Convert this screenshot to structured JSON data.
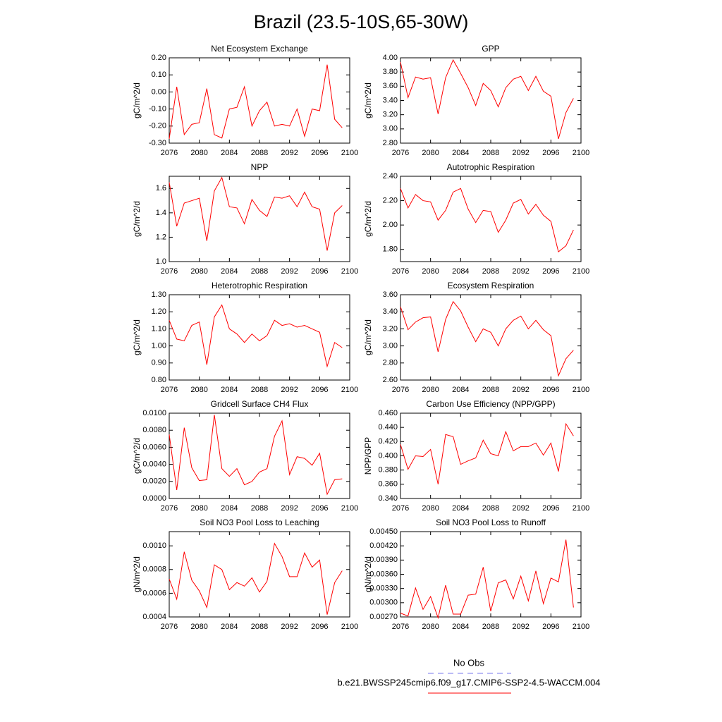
{
  "title": "Brazil (23.5-10S,65-30W)",
  "legend": [
    {
      "label": "No Obs",
      "color": "#7777ee",
      "dash": true
    },
    {
      "label": "b.e21.BWSSP245cmip6.f09_g17.CMIP6-SSP2-4.5-WACCM.004",
      "color": "#ff0000",
      "dash": false
    }
  ],
  "chart_data": [
    {
      "type": "line",
      "title": "Net Ecosystem Exchange",
      "ylabel": "gC/m^2/d",
      "x": [
        2076,
        2077,
        2078,
        2079,
        2080,
        2081,
        2082,
        2083,
        2084,
        2085,
        2086,
        2087,
        2088,
        2089,
        2090,
        2091,
        2092,
        2093,
        2094,
        2095,
        2096,
        2097,
        2098,
        2099
      ],
      "xlim": [
        2076,
        2100
      ],
      "xticks": [
        2076,
        2080,
        2084,
        2088,
        2092,
        2096,
        2100
      ],
      "ylim": [
        -0.3,
        0.2
      ],
      "yticks": [
        {
          "value": 0.2,
          "label": "0.20"
        },
        {
          "value": 0.1,
          "label": "0.10"
        },
        {
          "value": 0,
          "label": "0.00"
        },
        {
          "value": -0.1,
          "label": "-0.10"
        },
        {
          "value": -0.2,
          "label": "-0.20"
        },
        {
          "value": -0.3,
          "label": "-0.30"
        }
      ],
      "series": [
        {
          "color": "#ff0000",
          "values": [
            -0.275,
            0.03,
            -0.25,
            -0.19,
            -0.18,
            0.02,
            -0.25,
            -0.27,
            -0.1,
            -0.09,
            0.03,
            -0.2,
            -0.11,
            -0.06,
            -0.2,
            -0.19,
            -0.2,
            -0.1,
            -0.26,
            -0.1,
            -0.11,
            0.16,
            -0.16,
            -0.21
          ]
        }
      ]
    },
    {
      "type": "line",
      "title": "GPP",
      "ylabel": "gC/m^2/d",
      "x": [
        2076,
        2077,
        2078,
        2079,
        2080,
        2081,
        2082,
        2083,
        2084,
        2085,
        2086,
        2087,
        2088,
        2089,
        2090,
        2091,
        2092,
        2093,
        2094,
        2095,
        2096,
        2097,
        2098,
        2099
      ],
      "xlim": [
        2076,
        2100
      ],
      "xticks": [
        2076,
        2080,
        2084,
        2088,
        2092,
        2096,
        2100
      ],
      "ylim": [
        2.8,
        4.0
      ],
      "yticks": [
        {
          "value": 4.0,
          "label": "4.00"
        },
        {
          "value": 3.8,
          "label": "3.80"
        },
        {
          "value": 3.6,
          "label": "3.60"
        },
        {
          "value": 3.4,
          "label": "3.40"
        },
        {
          "value": 3.2,
          "label": "3.20"
        },
        {
          "value": 3.0,
          "label": "3.00"
        },
        {
          "value": 2.8,
          "label": "2.80"
        }
      ],
      "series": [
        {
          "color": "#ff0000",
          "values": [
            3.94,
            3.44,
            3.73,
            3.7,
            3.72,
            3.21,
            3.72,
            3.97,
            3.78,
            3.58,
            3.33,
            3.64,
            3.54,
            3.31,
            3.58,
            3.7,
            3.74,
            3.54,
            3.74,
            3.53,
            3.46,
            2.86,
            3.23,
            3.43
          ]
        }
      ]
    },
    {
      "type": "line",
      "title": "NPP",
      "ylabel": "gC/m^2/d",
      "x": [
        2076,
        2077,
        2078,
        2079,
        2080,
        2081,
        2082,
        2083,
        2084,
        2085,
        2086,
        2087,
        2088,
        2089,
        2090,
        2091,
        2092,
        2093,
        2094,
        2095,
        2096,
        2097,
        2098,
        2099
      ],
      "xlim": [
        2076,
        2100
      ],
      "xticks": [
        2076,
        2080,
        2084,
        2088,
        2092,
        2096,
        2100
      ],
      "ylim": [
        1.0,
        1.7
      ],
      "yticks": [
        1.6,
        1.4,
        1.2,
        {
          "value": 1.0,
          "label": "1.0"
        }
      ],
      "series": [
        {
          "color": "#ff0000",
          "values": [
            1.65,
            1.29,
            1.48,
            1.5,
            1.52,
            1.17,
            1.58,
            1.69,
            1.45,
            1.44,
            1.31,
            1.51,
            1.42,
            1.37,
            1.53,
            1.52,
            1.54,
            1.45,
            1.57,
            1.45,
            1.43,
            1.09,
            1.4,
            1.46
          ]
        }
      ]
    },
    {
      "type": "line",
      "title": "Autotrophic Respiration",
      "ylabel": "gC/m^2/d",
      "x": [
        2076,
        2077,
        2078,
        2079,
        2080,
        2081,
        2082,
        2083,
        2084,
        2085,
        2086,
        2087,
        2088,
        2089,
        2090,
        2091,
        2092,
        2093,
        2094,
        2095,
        2096,
        2097,
        2098,
        2099
      ],
      "xlim": [
        2076,
        2100
      ],
      "xticks": [
        2076,
        2080,
        2084,
        2088,
        2092,
        2096,
        2100
      ],
      "ylim": [
        1.7,
        2.4
      ],
      "yticks": [
        {
          "value": 2.4,
          "label": "2.40"
        },
        {
          "value": 2.2,
          "label": "2.20"
        },
        {
          "value": 2.0,
          "label": "2.00"
        },
        {
          "value": 1.8,
          "label": "1.80"
        }
      ],
      "series": [
        {
          "color": "#ff0000",
          "values": [
            2.3,
            2.14,
            2.25,
            2.2,
            2.19,
            2.04,
            2.12,
            2.27,
            2.3,
            2.13,
            2.02,
            2.12,
            2.11,
            1.94,
            2.04,
            2.18,
            2.21,
            2.09,
            2.17,
            2.08,
            2.03,
            1.78,
            1.83,
            1.96
          ]
        }
      ]
    },
    {
      "type": "line",
      "title": "Heterotrophic Respiration",
      "ylabel": "gC/m^2/d",
      "x": [
        2076,
        2077,
        2078,
        2079,
        2080,
        2081,
        2082,
        2083,
        2084,
        2085,
        2086,
        2087,
        2088,
        2089,
        2090,
        2091,
        2092,
        2093,
        2094,
        2095,
        2096,
        2097,
        2098,
        2099
      ],
      "xlim": [
        2076,
        2100
      ],
      "xticks": [
        2076,
        2080,
        2084,
        2088,
        2092,
        2096,
        2100
      ],
      "ylim": [
        0.8,
        1.3
      ],
      "yticks": [
        {
          "value": 1.3,
          "label": "1.30"
        },
        {
          "value": 1.2,
          "label": "1.20"
        },
        {
          "value": 1.1,
          "label": "1.10"
        },
        {
          "value": 1.0,
          "label": "1.00"
        },
        {
          "value": 0.9,
          "label": "0.90"
        },
        {
          "value": 0.8,
          "label": "0.80"
        }
      ],
      "series": [
        {
          "color": "#ff0000",
          "values": [
            1.15,
            1.04,
            1.03,
            1.12,
            1.14,
            0.89,
            1.17,
            1.24,
            1.1,
            1.07,
            1.02,
            1.07,
            1.03,
            1.06,
            1.15,
            1.12,
            1.13,
            1.11,
            1.12,
            1.1,
            1.08,
            0.88,
            1.02,
            0.99
          ]
        }
      ]
    },
    {
      "type": "line",
      "title": "Ecosystem Respiration",
      "ylabel": "gC/m^2/d",
      "x": [
        2076,
        2077,
        2078,
        2079,
        2080,
        2081,
        2082,
        2083,
        2084,
        2085,
        2086,
        2087,
        2088,
        2089,
        2090,
        2091,
        2092,
        2093,
        2094,
        2095,
        2096,
        2097,
        2098,
        2099
      ],
      "xlim": [
        2076,
        2100
      ],
      "xticks": [
        2076,
        2080,
        2084,
        2088,
        2092,
        2096,
        2100
      ],
      "ylim": [
        2.6,
        3.6
      ],
      "yticks": [
        {
          "value": 3.6,
          "label": "3.60"
        },
        {
          "value": 3.4,
          "label": "3.40"
        },
        {
          "value": 3.2,
          "label": "3.20"
        },
        {
          "value": 3.0,
          "label": "3.00"
        },
        {
          "value": 2.8,
          "label": "2.80"
        },
        {
          "value": 2.6,
          "label": "2.60"
        }
      ],
      "series": [
        {
          "color": "#ff0000",
          "values": [
            3.46,
            3.19,
            3.28,
            3.33,
            3.34,
            2.93,
            3.31,
            3.52,
            3.41,
            3.22,
            3.05,
            3.2,
            3.16,
            3.0,
            3.2,
            3.3,
            3.35,
            3.2,
            3.3,
            3.19,
            3.12,
            2.65,
            2.85,
            2.95
          ]
        }
      ]
    },
    {
      "type": "line",
      "title": "Gridcell Surface CH4 Flux",
      "ylabel": "gC/m^2/d",
      "x": [
        2076,
        2077,
        2078,
        2079,
        2080,
        2081,
        2082,
        2083,
        2084,
        2085,
        2086,
        2087,
        2088,
        2089,
        2090,
        2091,
        2092,
        2093,
        2094,
        2095,
        2096,
        2097,
        2098,
        2099
      ],
      "xlim": [
        2076,
        2100
      ],
      "xticks": [
        2076,
        2080,
        2084,
        2088,
        2092,
        2096,
        2100
      ],
      "ylim": [
        0,
        0.01
      ],
      "yticks": [
        {
          "value": 0.01,
          "label": "0.0100"
        },
        {
          "value": 0.008,
          "label": "0.0080"
        },
        {
          "value": 0.006,
          "label": "0.0060"
        },
        {
          "value": 0.004,
          "label": "0.0040"
        },
        {
          "value": 0.002,
          "label": "0.0020"
        },
        {
          "value": 0,
          "label": "0.0000"
        }
      ],
      "series": [
        {
          "color": "#ff0000",
          "values": [
            0.0075,
            0.001,
            0.0083,
            0.0036,
            0.0021,
            0.0022,
            0.0098,
            0.0035,
            0.0026,
            0.0035,
            0.0016,
            0.002,
            0.0031,
            0.0035,
            0.0073,
            0.0091,
            0.0028,
            0.0049,
            0.0047,
            0.0039,
            0.0053,
            0.0005,
            0.0022,
            0.0023
          ]
        }
      ]
    },
    {
      "type": "line",
      "title": "Carbon Use Efficiency (NPP/GPP)",
      "ylabel": "NPP/GPP",
      "x": [
        2076,
        2077,
        2078,
        2079,
        2080,
        2081,
        2082,
        2083,
        2084,
        2085,
        2086,
        2087,
        2088,
        2089,
        2090,
        2091,
        2092,
        2093,
        2094,
        2095,
        2096,
        2097,
        2098,
        2099
      ],
      "xlim": [
        2076,
        2100
      ],
      "xticks": [
        2076,
        2080,
        2084,
        2088,
        2092,
        2096,
        2100
      ],
      "ylim": [
        0.34,
        0.46
      ],
      "yticks": [
        {
          "value": 0.46,
          "label": "0.460"
        },
        {
          "value": 0.44,
          "label": "0.440"
        },
        {
          "value": 0.42,
          "label": "0.420"
        },
        {
          "value": 0.4,
          "label": "0.400"
        },
        {
          "value": 0.38,
          "label": "0.380"
        },
        {
          "value": 0.36,
          "label": "0.360"
        },
        {
          "value": 0.34,
          "label": "0.340"
        }
      ],
      "series": [
        {
          "color": "#ff0000",
          "values": [
            0.416,
            0.381,
            0.4,
            0.399,
            0.409,
            0.36,
            0.43,
            0.427,
            0.388,
            0.393,
            0.397,
            0.422,
            0.403,
            0.4,
            0.434,
            0.407,
            0.413,
            0.413,
            0.418,
            0.401,
            0.418,
            0.378,
            0.445,
            0.428
          ]
        }
      ]
    },
    {
      "type": "line",
      "title": "Soil NO3 Pool Loss to Leaching",
      "ylabel": "gN/m^2/d",
      "x": [
        2076,
        2077,
        2078,
        2079,
        2080,
        2081,
        2082,
        2083,
        2084,
        2085,
        2086,
        2087,
        2088,
        2089,
        2090,
        2091,
        2092,
        2093,
        2094,
        2095,
        2096,
        2097,
        2098,
        2099
      ],
      "xlim": [
        2076,
        2100
      ],
      "xticks": [
        2076,
        2080,
        2084,
        2088,
        2092,
        2096,
        2100
      ],
      "ylim": [
        0.0004,
        0.00112
      ],
      "yticks": [
        {
          "value": 0.001,
          "label": "0.0010"
        },
        0.0008,
        0.0006,
        0.0004
      ],
      "series": [
        {
          "color": "#ff0000",
          "values": [
            0.00072,
            0.00055,
            0.00095,
            0.00071,
            0.00062,
            0.00048,
            0.00084,
            0.0008,
            0.00063,
            0.00069,
            0.00066,
            0.00073,
            0.00061,
            0.0007,
            0.00102,
            0.00091,
            0.00074,
            0.00074,
            0.00094,
            0.00082,
            0.00088,
            0.00042,
            0.00069,
            0.00079
          ]
        }
      ]
    },
    {
      "type": "line",
      "title": "Soil NO3 Pool Loss to Runoff",
      "ylabel": "gN/m^2/d",
      "x": [
        2076,
        2077,
        2078,
        2079,
        2080,
        2081,
        2082,
        2083,
        2084,
        2085,
        2086,
        2087,
        2088,
        2089,
        2090,
        2091,
        2092,
        2093,
        2094,
        2095,
        2096,
        2097,
        2098,
        2099
      ],
      "xlim": [
        2076,
        2100
      ],
      "xticks": [
        2076,
        2080,
        2084,
        2088,
        2092,
        2096,
        2100
      ],
      "ylim": [
        0.0027,
        0.0045
      ],
      "yticks": [
        {
          "value": 0.0045,
          "label": "0.00450"
        },
        {
          "value": 0.0042,
          "label": "0.00420"
        },
        {
          "value": 0.0039,
          "label": "0.00390"
        },
        {
          "value": 0.0036,
          "label": "0.00360"
        },
        {
          "value": 0.0033,
          "label": "0.00330"
        },
        {
          "value": 0.003,
          "label": "0.00300"
        },
        {
          "value": 0.0027,
          "label": "0.00270"
        }
      ],
      "series": [
        {
          "color": "#ff0000",
          "values": [
            0.00278,
            0.00272,
            0.00331,
            0.00286,
            0.00313,
            0.00268,
            0.00337,
            0.00276,
            0.00276,
            0.00316,
            0.00318,
            0.00375,
            0.00282,
            0.00342,
            0.00348,
            0.00308,
            0.00356,
            0.00304,
            0.00367,
            0.00298,
            0.00352,
            0.00344,
            0.00433,
            0.0029
          ]
        }
      ]
    }
  ]
}
